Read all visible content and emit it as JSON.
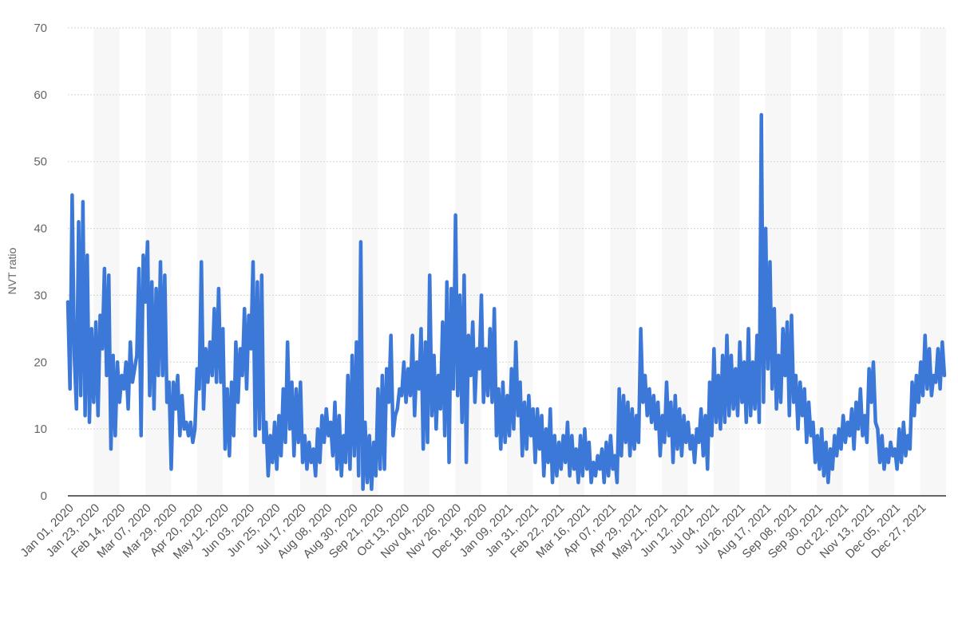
{
  "chart_data": {
    "type": "line",
    "title": "",
    "xlabel": "",
    "ylabel": "NVT ratio",
    "ylim": [
      0,
      70
    ],
    "yticks": [
      0,
      10,
      20,
      30,
      40,
      50,
      60,
      70
    ],
    "grid": true,
    "legend": "none",
    "line_color": "#3b78d8",
    "band_color": "#f7f7f7",
    "gridline_color": "#c8c8c8",
    "x_tick_labels": [
      "Jan 01, 2020",
      "Jan 23, 2020",
      "Feb 14, 2020",
      "Mar 07, 2020",
      "Mar 29, 2020",
      "Apr 20, 2020",
      "May 12, 2020",
      "Jun 03, 2020",
      "Jun 25, 2020",
      "Jul 17, 2020",
      "Aug 08, 2020",
      "Aug 30, 2020",
      "Sep 21, 2020",
      "Oct 13, 2020",
      "Nov 04, 2020",
      "Nov 26, 2020",
      "Dec 18, 2020",
      "Jan 09, 2021",
      "Jan 31, 2021",
      "Feb 22, 2021",
      "Mar 16, 2021",
      "Apr 07, 2021",
      "Apr 29, 2021",
      "May 21, 2021",
      "Jun 12, 2021",
      "Jul 04, 2021",
      "Jul 26, 2021",
      "Aug 17, 2021",
      "Sep 08, 2021",
      "Sep 30, 2021",
      "Oct 22, 2021",
      "Nov 13, 2021",
      "Dec 05, 2021",
      "Dec 27, 2021"
    ],
    "series": [
      {
        "x_start": "Jan 01, 2020",
        "x_end": "Dec 31, 2021",
        "values": [
          29,
          16,
          45,
          21,
          13,
          41,
          15,
          44,
          12,
          36,
          11,
          25,
          14,
          26,
          12,
          27,
          22,
          34,
          18,
          33,
          7,
          21,
          9,
          20,
          14,
          18,
          16,
          20,
          13,
          23,
          17,
          19,
          21,
          34,
          9,
          36,
          29,
          38,
          15,
          32,
          13,
          31,
          18,
          35,
          18,
          33,
          14,
          17,
          4,
          17,
          13,
          18,
          9,
          15,
          10,
          11,
          9,
          11,
          8,
          10,
          19,
          16,
          35,
          13,
          22,
          17,
          23,
          18,
          28,
          17,
          31,
          17,
          25,
          7,
          16,
          6,
          17,
          9,
          23,
          14,
          22,
          18,
          28,
          16,
          27,
          22,
          35,
          9,
          32,
          10,
          33,
          8,
          11,
          3,
          9,
          5,
          11,
          4,
          12,
          6,
          16,
          8,
          23,
          10,
          17,
          6,
          16,
          8,
          17,
          5,
          9,
          4,
          8,
          5,
          7,
          3,
          10,
          5,
          12,
          8,
          13,
          9,
          11,
          6,
          14,
          4,
          12,
          3,
          9,
          5,
          18,
          4,
          21,
          6,
          23,
          3,
          38,
          1,
          11,
          2,
          9,
          1,
          8,
          3,
          16,
          4,
          18,
          4,
          19,
          14,
          24,
          9,
          12,
          13,
          16,
          15,
          20,
          14,
          19,
          15,
          24,
          12,
          20,
          16,
          25,
          7,
          23,
          8,
          33,
          12,
          21,
          10,
          18,
          13,
          26,
          9,
          32,
          5,
          31,
          16,
          42,
          15,
          30,
          11,
          33,
          5,
          24,
          18,
          26,
          14,
          22,
          19,
          30,
          14,
          22,
          15,
          25,
          14,
          28,
          9,
          16,
          7,
          17,
          8,
          15,
          9,
          19,
          10,
          23,
          12,
          17,
          6,
          14,
          7,
          15,
          9,
          13,
          5,
          13,
          7,
          12,
          3,
          10,
          5,
          13,
          2,
          9,
          3,
          8,
          4,
          9,
          5,
          11,
          3,
          9,
          4,
          7,
          2,
          9,
          3,
          10,
          4,
          8,
          2,
          5,
          3,
          6,
          4,
          7,
          2,
          8,
          3,
          9,
          4,
          6,
          2,
          16,
          6,
          15,
          8,
          14,
          6,
          13,
          7,
          12,
          8,
          25,
          14,
          18,
          12,
          16,
          11,
          15,
          10,
          14,
          6,
          12,
          8,
          17,
          9,
          14,
          5,
          15,
          7,
          13,
          6,
          12,
          8,
          11,
          7,
          9,
          5,
          10,
          8,
          13,
          6,
          12,
          4,
          17,
          9,
          22,
          11,
          18,
          10,
          21,
          11,
          24,
          12,
          21,
          13,
          19,
          12,
          23,
          14,
          20,
          11,
          25,
          12,
          20,
          13,
          24,
          11,
          57,
          14,
          40,
          19,
          35,
          16,
          28,
          13,
          21,
          14,
          25,
          18,
          26,
          12,
          27,
          14,
          18,
          10,
          17,
          12,
          16,
          8,
          14,
          9,
          11,
          5,
          9,
          4,
          10,
          3,
          8,
          2,
          7,
          4,
          9,
          6,
          10,
          7,
          12,
          8,
          11,
          9,
          13,
          7,
          14,
          10,
          16,
          9,
          12,
          8,
          19,
          14,
          20,
          11,
          10,
          5,
          9,
          4,
          7,
          5,
          8,
          6,
          7,
          4,
          10,
          5,
          11,
          6,
          9,
          7,
          17,
          12,
          18,
          14,
          20,
          15,
          24,
          16,
          22,
          15,
          18,
          17,
          22,
          16,
          23,
          18
        ]
      }
    ]
  }
}
